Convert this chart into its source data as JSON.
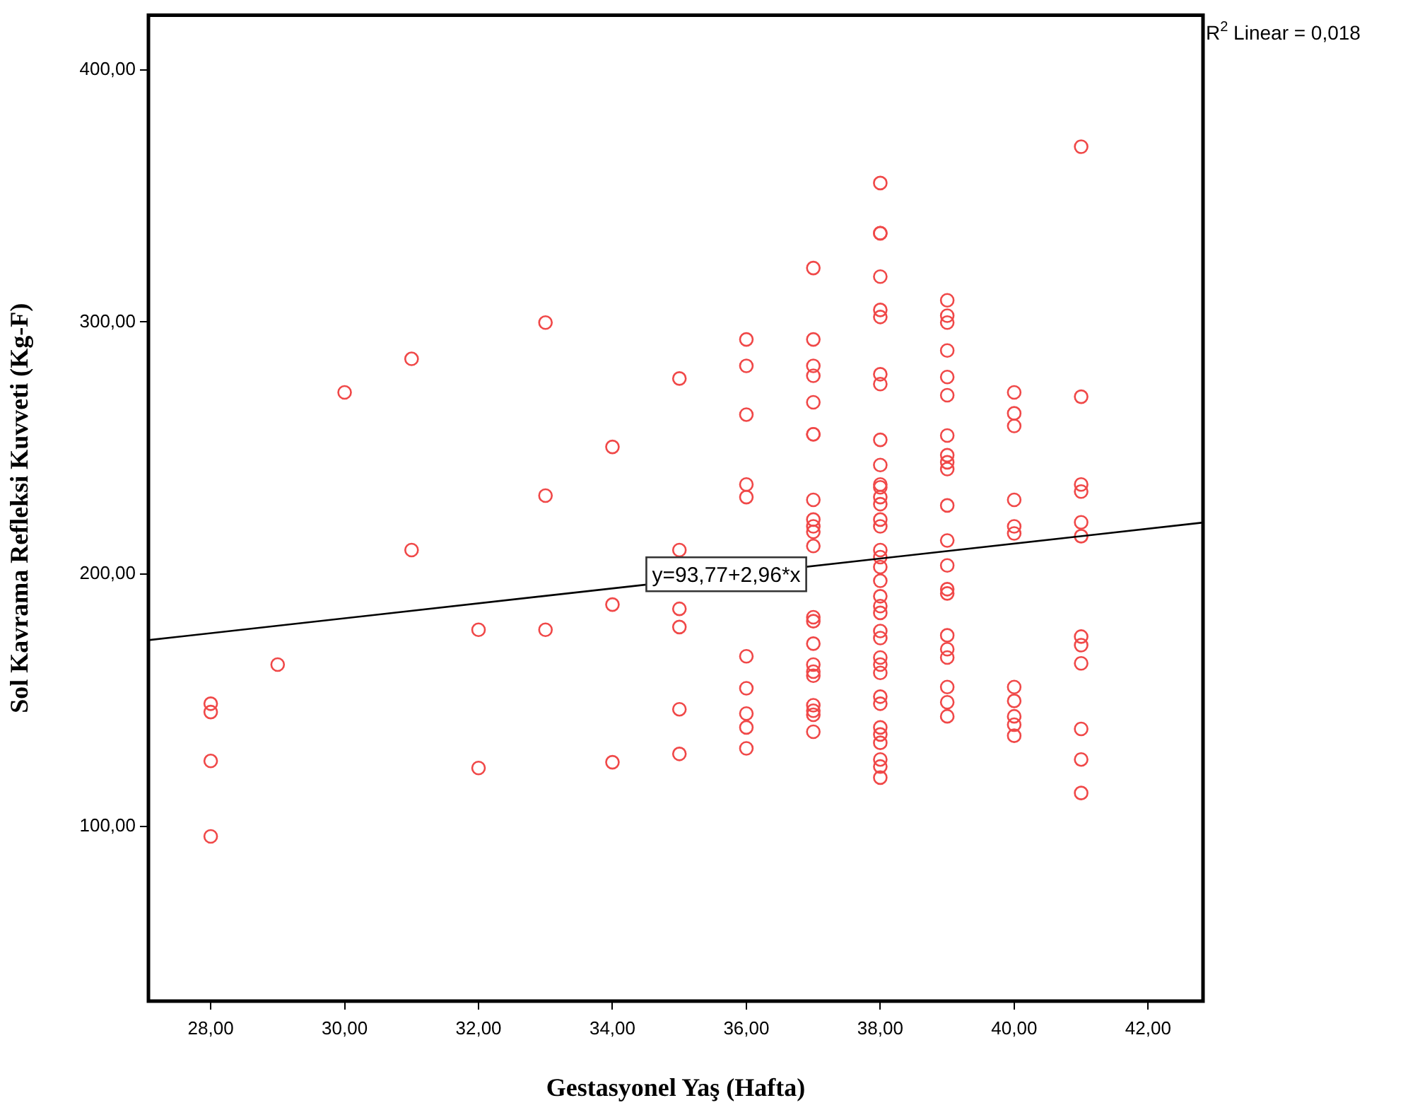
{
  "chart_data": {
    "type": "scatter",
    "xlabel": "Gestasyonel Yaş (Hafta)",
    "ylabel": "Sol Kavrama Refleksi Kuvveti (Kg-F)",
    "xlim": [
      27.07,
      42.82
    ],
    "ylim": [
      30.8,
      421.6
    ],
    "xticks": [
      {
        "value": 28,
        "label": "28,00"
      },
      {
        "value": 30,
        "label": "30,00"
      },
      {
        "value": 32,
        "label": "32,00"
      },
      {
        "value": 34,
        "label": "34,00"
      },
      {
        "value": 36,
        "label": "36,00"
      },
      {
        "value": 38,
        "label": "38,00"
      },
      {
        "value": 40,
        "label": "40,00"
      },
      {
        "value": 42,
        "label": "42,00"
      }
    ],
    "yticks": [
      {
        "value": 100,
        "label": "100,00"
      },
      {
        "value": 200,
        "label": "200,00"
      },
      {
        "value": 300,
        "label": "300,00"
      },
      {
        "value": 400,
        "label": "400,00"
      }
    ],
    "grid": false,
    "legend": false,
    "marker": "circle",
    "annotations": [
      "R$^{2}$ Linear = 0,018",
      {
        "text": "y=93,77+2,96*x",
        "x": 35.7,
        "y": 200
      }
    ],
    "series": [
      {
        "type": "scatter",
        "color": "#f04848",
        "x": [
          28,
          28,
          28,
          28,
          29,
          30,
          31,
          31,
          32,
          32,
          33,
          33,
          33,
          34,
          34,
          34,
          35,
          35,
          35,
          35,
          35,
          35,
          36,
          36,
          36,
          36,
          36,
          36,
          36,
          36,
          36,
          36,
          37,
          37,
          37,
          37,
          37,
          37,
          37,
          37,
          37,
          37,
          37,
          37,
          37,
          37,
          37,
          37,
          37,
          37,
          37,
          37,
          37,
          37,
          38,
          38,
          38,
          38,
          38,
          38,
          38,
          38,
          38,
          38,
          38,
          38,
          38,
          38,
          38,
          38,
          38,
          38,
          38,
          38,
          38,
          38,
          38,
          38,
          38,
          38,
          38,
          38,
          38,
          38,
          38,
          38,
          38,
          38,
          38,
          38,
          39,
          39,
          39,
          39,
          39,
          39,
          39,
          39,
          39,
          39,
          39,
          39,
          39,
          39,
          39,
          39,
          39,
          39,
          39,
          39,
          39,
          40,
          40,
          40,
          40,
          40,
          40,
          40,
          40,
          40,
          40,
          40,
          41,
          41,
          41,
          41,
          41,
          41,
          41,
          41,
          41,
          41,
          41,
          41
        ],
        "values": [
          148.7,
          145.4,
          126.0,
          96.1,
          164.2,
          272.1,
          285.4,
          209.6,
          178.0,
          123.2,
          299.8,
          231.2,
          178.0,
          250.5,
          188.0,
          125.5,
          277.6,
          209.6,
          186.3,
          179.1,
          146.5,
          128.8,
          293.1,
          282.6,
          263.3,
          235.6,
          230.6,
          167.5,
          154.8,
          144.8,
          139.3,
          131.0,
          321.4,
          293.1,
          282.6,
          278.7,
          268.2,
          255.5,
          255.5,
          229.5,
          221.7,
          219.0,
          216.8,
          211.2,
          183.0,
          181.4,
          172.5,
          164.2,
          161.4,
          159.8,
          148.1,
          145.9,
          144.3,
          137.6,
          355.1,
          335.2,
          335.2,
          318.0,
          304.8,
          302.0,
          279.3,
          275.4,
          253.3,
          243.3,
          235.6,
          234.5,
          230.6,
          227.8,
          221.7,
          219.0,
          209.6,
          206.8,
          202.9,
          197.4,
          191.3,
          187.4,
          184.7,
          177.5,
          174.7,
          167.0,
          164.2,
          160.9,
          151.5,
          148.7,
          139.3,
          136.5,
          133.2,
          126.6,
          123.8,
          119.4,
          308.6,
          302.5,
          299.8,
          288.7,
          278.2,
          271.0,
          255.0,
          247.2,
          244.4,
          241.7,
          227.3,
          213.4,
          203.5,
          194.1,
          192.4,
          175.8,
          170.3,
          167.0,
          155.3,
          149.3,
          143.7,
          272.1,
          263.8,
          258.8,
          229.5,
          219.0,
          216.2,
          155.3,
          149.8,
          143.7,
          140.4,
          136.0,
          369.5,
          270.4,
          235.6,
          232.8,
          220.6,
          215.1,
          175.3,
          171.9,
          164.7,
          138.7,
          126.6,
          113.3
        ]
      },
      {
        "type": "line",
        "color": "#000000",
        "marker": "none",
        "x": [
          27.07,
          42.82
        ],
        "values": [
          173.9,
          220.5
        ]
      }
    ]
  }
}
